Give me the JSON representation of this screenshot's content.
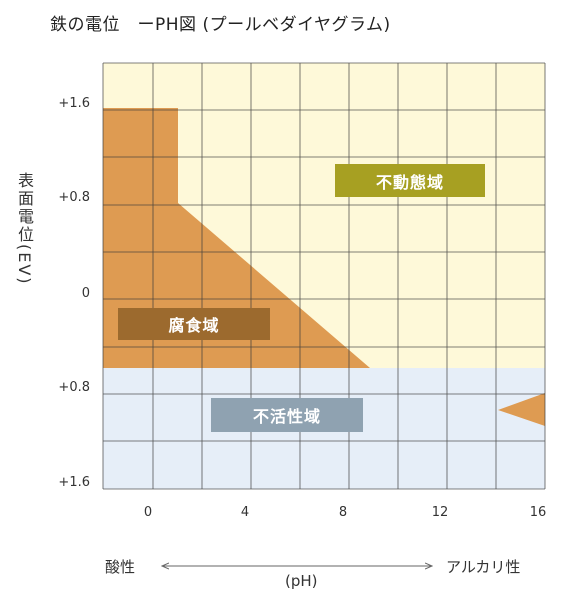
{
  "title": "鉄の電位　ーPH図 (プールベダイヤグラム)",
  "y_axis_title": "表面電位(EV)",
  "y_ticks": [
    "+1.6",
    "+0.8",
    "0",
    "+0.8",
    "+1.6"
  ],
  "x_ticks": [
    "0",
    "4",
    "8",
    "12",
    "16"
  ],
  "regions": {
    "immunity": "不動態域",
    "corrosion": "腐食域",
    "passive": "不活性域"
  },
  "x_axis": {
    "left_label": "酸性",
    "right_label": "アルカリ性",
    "unit": "(pH)"
  },
  "colors": {
    "immunity_region": "#FEF9D9",
    "corrosion_region": "#DE9B52",
    "passive_region": "#E6EEF8",
    "grid_line": "#3A3A3A",
    "immunity_label_bg": "#A7A022",
    "corrosion_label_bg": "#9C6A2E",
    "passive_label_bg": "#8FA2B1"
  }
}
